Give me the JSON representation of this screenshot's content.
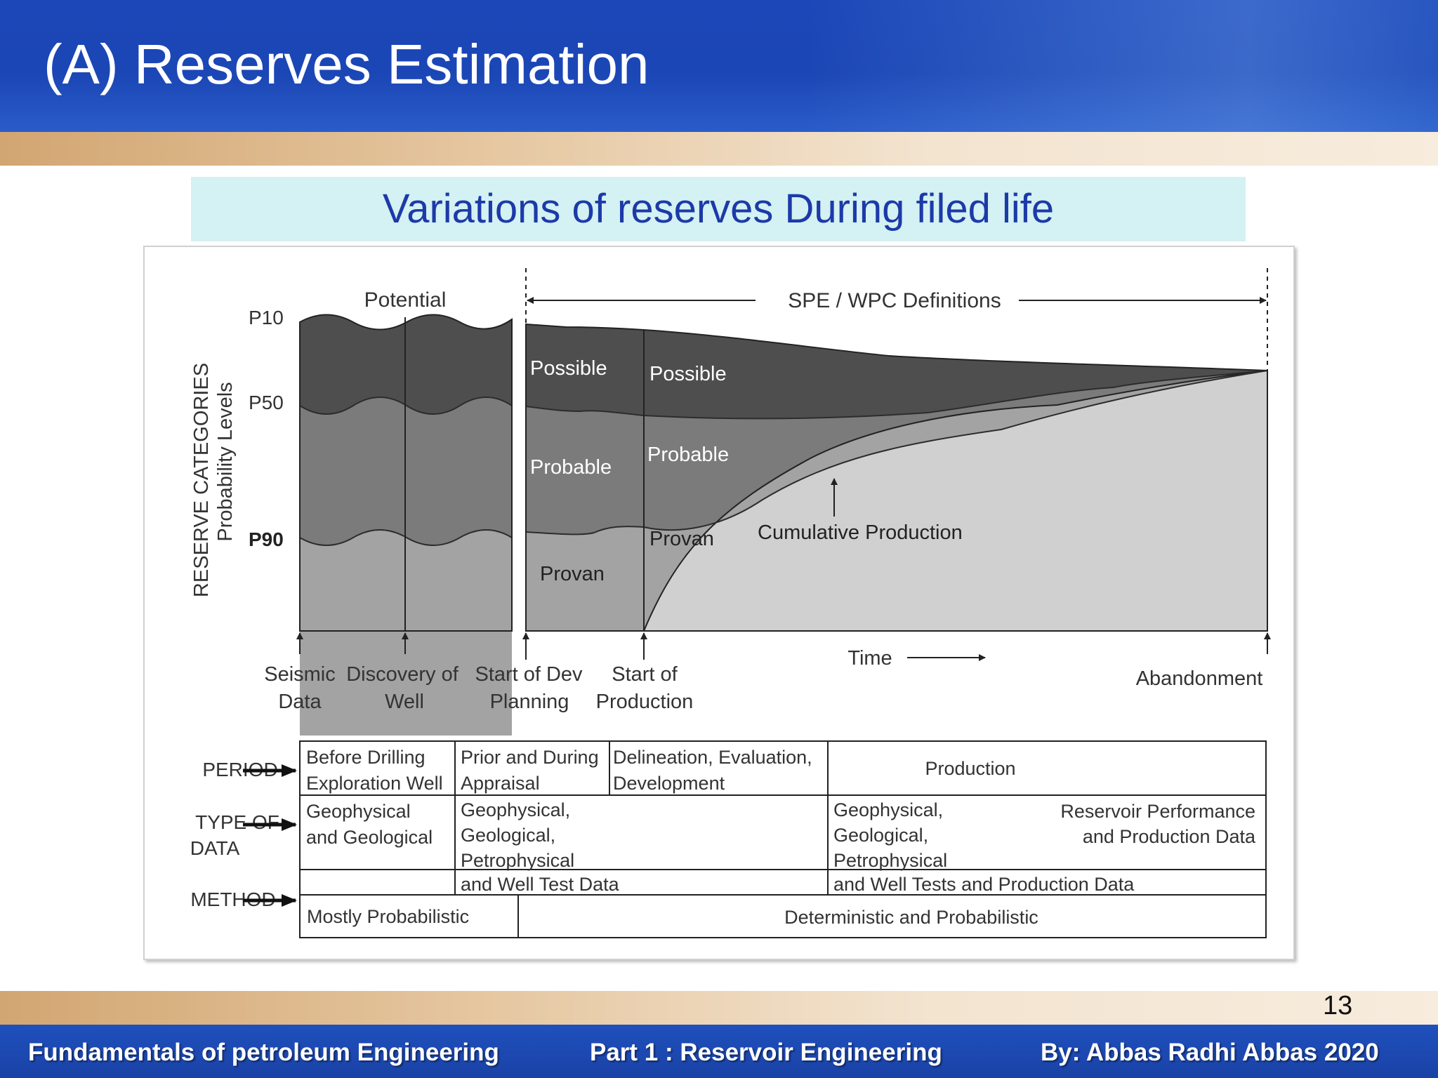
{
  "slide": {
    "title": "(A) Reserves Estimation",
    "subtitle": "Variations of reserves During filed life",
    "page_number": "13"
  },
  "footer": {
    "left": "Fundamentals of petroleum Engineering",
    "center": "Part 1 :  Reservoir Engineering",
    "right": "By: Abbas Radhi Abbas  2020"
  },
  "colors": {
    "header_blue": "#1c47b8",
    "subtitle_blue": "#1c3aa8",
    "possible": "#4d4d4d",
    "probable": "#7a7a7a",
    "proven": "#a2a2a2",
    "cumulative": "#d0d0d0"
  },
  "diagram": {
    "y_axis_title": "RESERVE CATEGORIES",
    "y_axis_subtitle": "Probability Levels",
    "levels": {
      "p10": "P10",
      "p50": "P50",
      "p90": "P90"
    },
    "potential_label": "Potential",
    "spe_label": "SPE / WPC Definitions",
    "areas": {
      "possible_1": "Possible",
      "possible_2": "Possible",
      "probable_1": "Probable",
      "probable_2": "Probable",
      "proven_1": "Provan",
      "proven_2": "Provan",
      "cumulative": "Cumulative Production"
    },
    "milestones": {
      "seismic_1": "Seismic",
      "seismic_2": "Data",
      "discovery_1": "Discovery of",
      "discovery_2": "Well",
      "dev_1": "Start of Dev",
      "dev_2": "Planning",
      "prod_1": "Start of",
      "prod_2": "Production",
      "time": "Time",
      "abandonment": "Abandonment"
    },
    "row_labels": {
      "period": "PERIOD",
      "type_1": "TYPE OF",
      "type_2": "DATA",
      "method": "METHOD"
    },
    "table": {
      "period_1a": "Before Drilling",
      "period_1b": "Exploration Well",
      "period_2a": "Prior and During",
      "period_2b": "Appraisal",
      "period_3a": "Delineation, Evaluation,",
      "period_3b": "Development",
      "period_4": "Production",
      "type_1a": "Geophysical",
      "type_1b": "and Geological",
      "type_2a": "Geophysical,",
      "type_2b": "Geological,",
      "type_2c": "Petrophysical",
      "type_2d": "and Well Test Data",
      "type_3a": "Geophysical,",
      "type_3b": "Geological,",
      "type_3c": "Petrophysical",
      "type_3d": "and Well Tests and Production Data",
      "type_4a": "Reservoir Performance",
      "type_4b": "and Production Data",
      "method_1": "Mostly Probabilistic",
      "method_2": "Deterministic and Probabilistic"
    }
  }
}
